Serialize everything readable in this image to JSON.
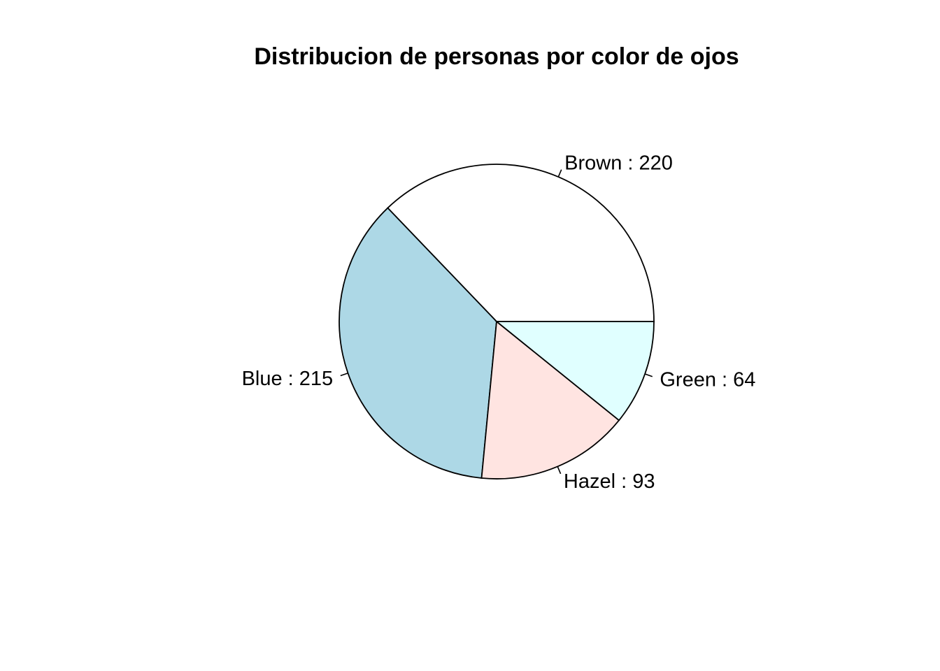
{
  "chart_data": {
    "type": "pie",
    "title": "Distribucion de personas por color de ojos",
    "categories": [
      "Brown",
      "Blue",
      "Hazel",
      "Green"
    ],
    "values": [
      220,
      215,
      93,
      64
    ],
    "labels": [
      "Brown : 220",
      "Blue : 215",
      "Hazel : 93",
      "Green : 64"
    ],
    "colors": [
      "#ffffff",
      "#add8e6",
      "#ffe4e1",
      "#e0ffff"
    ],
    "start_angle_deg": 0,
    "direction": "counterclockwise"
  }
}
